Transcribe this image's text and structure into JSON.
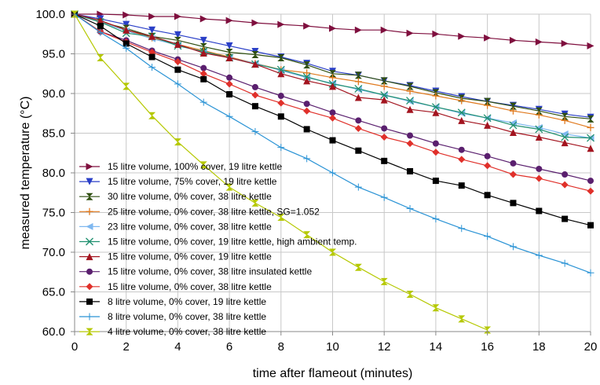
{
  "chart_data": {
    "type": "line",
    "title": "",
    "xlabel": "time after flameout (minutes)",
    "ylabel": "measured temperature (°C)",
    "xlim": [
      0,
      20
    ],
    "ylim": [
      60,
      100
    ],
    "xticks": [
      "0",
      "2",
      "4",
      "6",
      "8",
      "10",
      "12",
      "14",
      "16",
      "18",
      "20"
    ],
    "yticks": [
      "60.0",
      "65.0",
      "70.0",
      "75.0",
      "80.0",
      "85.0",
      "90.0",
      "95.0",
      "100.0"
    ],
    "grid": true,
    "legend_position": "left",
    "series": [
      {
        "name": "15 litre volume, 100% cover, 19 litre kettle",
        "color": "#7f0f3e",
        "marker": "triangle-right",
        "x": [
          0,
          1,
          2,
          3,
          4,
          5,
          6,
          7,
          8,
          9,
          10,
          11,
          12,
          13,
          14,
          15,
          16,
          17,
          18,
          19,
          20
        ],
        "y": [
          100,
          100,
          99.9,
          99.7,
          99.7,
          99.4,
          99.2,
          98.9,
          98.7,
          98.5,
          98.2,
          98.0,
          98.0,
          97.6,
          97.5,
          97.2,
          97.0,
          96.7,
          96.5,
          96.3,
          96.0
        ]
      },
      {
        "name": "15 litre volume, 75% cover, 19 litre kettle",
        "color": "#2a3fc7",
        "marker": "triangle-down",
        "x": [
          0,
          1,
          2,
          3,
          4,
          5,
          6,
          7,
          8,
          9,
          10,
          11,
          12,
          13,
          14,
          15,
          16,
          17,
          18,
          19,
          20
        ],
        "y": [
          100,
          99.4,
          98.7,
          98.0,
          97.4,
          96.7,
          96.0,
          95.3,
          94.6,
          93.8,
          92.8,
          92.3,
          91.6,
          91.0,
          90.3,
          89.6,
          89.0,
          88.5,
          88.0,
          87.4,
          87.0
        ]
      },
      {
        "name": "30 litre volume, 0% cover, 38 litre kettle",
        "color": "#2f4f10",
        "marker": "bowtie",
        "x": [
          0,
          1,
          2,
          3,
          4,
          5,
          6,
          7,
          8,
          9,
          10,
          11,
          12,
          13,
          14,
          15,
          16,
          17,
          18,
          19,
          20
        ],
        "y": [
          100,
          99.0,
          98.2,
          97.2,
          96.7,
          95.9,
          95.2,
          94.9,
          94.5,
          93.6,
          92.5,
          92.3,
          91.6,
          90.9,
          90.1,
          89.4,
          89.0,
          88.4,
          87.8,
          87.1,
          86.8
        ]
      },
      {
        "name": "25 litre volume, 0% cover, 38 litre kettle, SG=1.052",
        "color": "#e07a1f",
        "marker": "plus",
        "x": [
          0,
          1,
          2,
          3,
          4,
          5,
          6,
          7,
          8,
          9,
          10,
          11,
          12,
          13,
          14,
          15,
          16,
          17,
          18,
          19,
          20
        ],
        "y": [
          100,
          99.0,
          98.0,
          97.0,
          96.2,
          95.4,
          94.6,
          93.8,
          93.0,
          92.6,
          92.0,
          91.5,
          90.9,
          90.3,
          89.7,
          89.1,
          88.5,
          87.8,
          87.3,
          86.6,
          85.7
        ]
      },
      {
        "name": "23 litre volume, 0% cover, 38 litre kettle",
        "color": "#7fb8f0",
        "marker": "triangle-left",
        "x": [
          0,
          1,
          2,
          3,
          4,
          5,
          6,
          7,
          8,
          9,
          10,
          11,
          12,
          13,
          14,
          15,
          16,
          17,
          18,
          19,
          20
        ],
        "y": [
          100,
          99.0,
          97.9,
          96.9,
          96.1,
          95.2,
          94.5,
          93.8,
          92.9,
          92.0,
          91.3,
          90.5,
          89.8,
          89.0,
          88.3,
          87.5,
          86.9,
          86.3,
          85.7,
          84.9,
          84.4
        ]
      },
      {
        "name": "15 litre volume, 0% cover, 19 litre kettle, high ambient temp.",
        "color": "#1f8f6f",
        "marker": "x",
        "x": [
          0,
          1,
          2,
          3,
          4,
          5,
          6,
          7,
          8,
          9,
          10,
          11,
          12,
          13,
          14,
          15,
          16,
          17,
          18,
          19,
          20
        ],
        "y": [
          100,
          99.0,
          97.6,
          97.2,
          96.0,
          95.3,
          94.5,
          93.7,
          93.0,
          92.1,
          91.2,
          90.6,
          89.8,
          89.1,
          88.3,
          87.6,
          86.9,
          86.0,
          85.5,
          84.5,
          84.4
        ]
      },
      {
        "name": "15 litre volume, 0% cover, 19 litre kettle",
        "color": "#a3141f",
        "marker": "triangle-up",
        "x": [
          0,
          1,
          2,
          3,
          4,
          5,
          6,
          7,
          8,
          9,
          10,
          11,
          12,
          13,
          14,
          15,
          16,
          17,
          18,
          19,
          20
        ],
        "y": [
          100,
          99.2,
          98.0,
          97.2,
          96.2,
          95.1,
          94.5,
          93.7,
          92.5,
          91.6,
          90.9,
          89.5,
          89.2,
          88.0,
          87.6,
          86.6,
          86.0,
          85.1,
          84.5,
          83.8,
          83.1
        ]
      },
      {
        "name": "15 litre volume, 0% cover, 38 litre insulated kettle",
        "color": "#5a1f6e",
        "marker": "circle",
        "x": [
          0,
          1,
          2,
          3,
          4,
          5,
          6,
          7,
          8,
          9,
          10,
          11,
          12,
          13,
          14,
          15,
          16,
          17,
          18,
          19,
          20
        ],
        "y": [
          100,
          97.8,
          96.7,
          95.4,
          94.3,
          93.2,
          92.0,
          90.8,
          89.7,
          88.7,
          87.6,
          86.6,
          85.6,
          84.7,
          83.7,
          82.9,
          82.1,
          81.2,
          80.5,
          79.8,
          79.0
        ]
      },
      {
        "name": "15 litre volume, 0% cover, 38 litre kettle",
        "color": "#e0302a",
        "marker": "diamond",
        "x": [
          0,
          1,
          2,
          3,
          4,
          5,
          6,
          7,
          8,
          9,
          10,
          11,
          12,
          13,
          14,
          15,
          16,
          17,
          18,
          19,
          20
        ],
        "y": [
          100,
          97.8,
          96.5,
          95.2,
          94.0,
          92.5,
          91.2,
          89.8,
          88.8,
          87.8,
          86.9,
          85.6,
          84.5,
          83.7,
          82.6,
          81.7,
          80.9,
          79.8,
          79.3,
          78.5,
          77.7
        ]
      },
      {
        "name": "8 litre volume, 0% cover, 19 litre kettle",
        "color": "#000000",
        "marker": "square",
        "x": [
          0,
          1,
          2,
          3,
          4,
          5,
          6,
          7,
          8,
          9,
          10,
          11,
          12,
          13,
          14,
          15,
          16,
          17,
          18,
          19,
          20
        ],
        "y": [
          100,
          98.5,
          96.3,
          94.6,
          93.0,
          91.8,
          89.9,
          88.4,
          87.1,
          85.5,
          84.1,
          82.8,
          81.5,
          80.2,
          79.0,
          78.4,
          77.2,
          76.2,
          75.2,
          74.2,
          73.4
        ]
      },
      {
        "name": "8 litre volume, 0% cover, 38 litre kettle",
        "color": "#2a93d5",
        "marker": "cross",
        "x": [
          0,
          1,
          2,
          3,
          4,
          5,
          6,
          7,
          8,
          9,
          10,
          11,
          12,
          13,
          14,
          15,
          16,
          17,
          18,
          19,
          20
        ],
        "y": [
          100,
          97.7,
          95.7,
          93.3,
          91.2,
          88.9,
          87.1,
          85.2,
          83.2,
          81.8,
          80.0,
          78.2,
          76.9,
          75.5,
          74.2,
          73.0,
          72.0,
          70.7,
          69.6,
          68.6,
          67.4
        ]
      },
      {
        "name": "4 litre volume, 0% cover, 38 litre kettle",
        "color": "#b5c800",
        "marker": "hourglass",
        "x": [
          0,
          1,
          2,
          3,
          4,
          5,
          6,
          7,
          8,
          9,
          10,
          11,
          12,
          13,
          14,
          15,
          16
        ],
        "y": [
          100,
          94.5,
          90.9,
          87.2,
          83.9,
          81.0,
          78.2,
          76.2,
          74.4,
          72.2,
          70.0,
          68.1,
          66.3,
          64.7,
          63.0,
          61.6,
          60.2
        ]
      }
    ]
  }
}
